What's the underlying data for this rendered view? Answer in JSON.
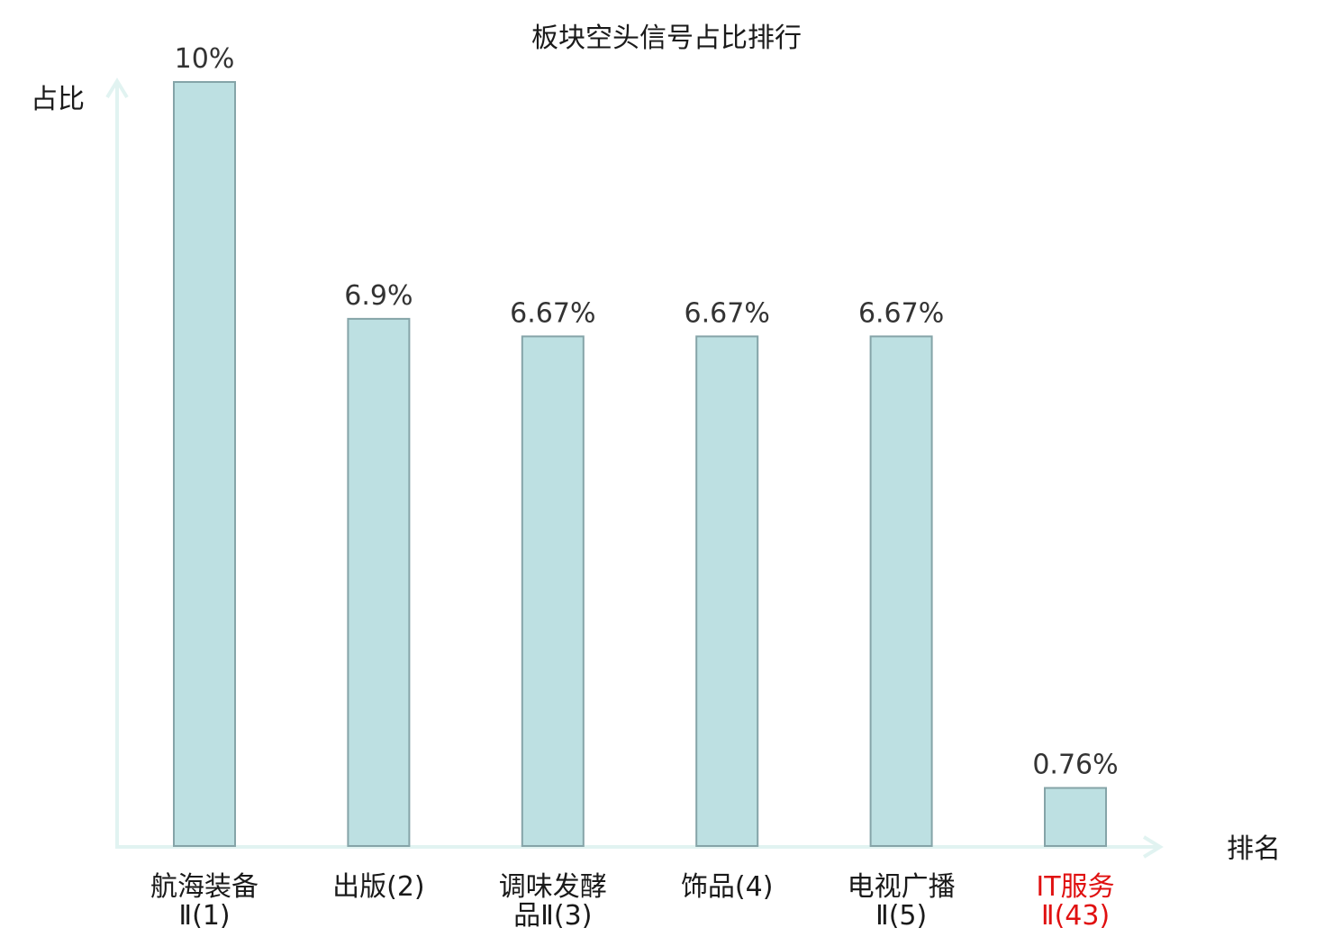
{
  "chart_data": {
    "type": "bar",
    "title": "板块空头信号占比排行",
    "ylabel": "占比",
    "xlabel": "排名",
    "ylim": [
      0,
      10
    ],
    "grid": false,
    "categories": [
      {
        "lines": [
          "航海装备",
          "Ⅱ(1)"
        ],
        "value": 10,
        "label": "10%",
        "highlight": false
      },
      {
        "lines": [
          "出版(2)"
        ],
        "value": 6.9,
        "label": "6.9%",
        "highlight": false
      },
      {
        "lines": [
          "调味发酵",
          "品Ⅱ(3)"
        ],
        "value": 6.67,
        "label": "6.67%",
        "highlight": false
      },
      {
        "lines": [
          "饰品(4)"
        ],
        "value": 6.67,
        "label": "6.67%",
        "highlight": false
      },
      {
        "lines": [
          "电视广播",
          "Ⅱ(5)"
        ],
        "value": 6.67,
        "label": "6.67%",
        "highlight": false
      },
      {
        "lines": [
          "IT服务",
          "Ⅱ(43)"
        ],
        "value": 0.76,
        "label": "0.76%",
        "highlight": true
      }
    ],
    "colors": {
      "bar_fill": "#bde0e2",
      "bar_stroke": "#85a4a8",
      "axis": "#e1f3f1",
      "text": "#1a1a1a",
      "highlight_text": "#e01010"
    }
  }
}
